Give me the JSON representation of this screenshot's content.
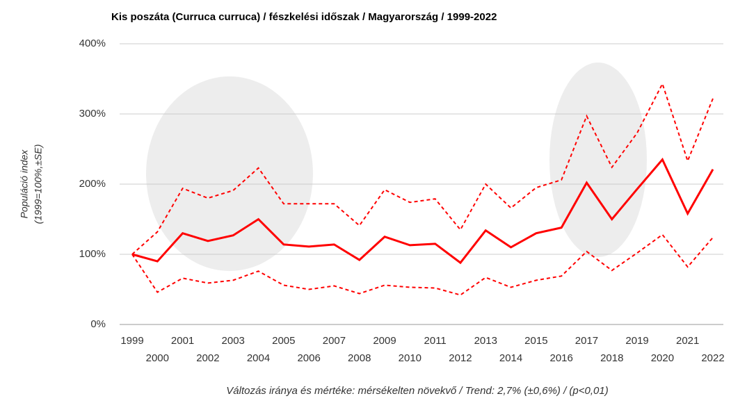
{
  "chart_data": {
    "type": "line",
    "title": "Kis poszáta (Curruca curruca) / fészkelési időszak / Magyarország / 1999-2022",
    "y_label": [
      "Populáció index",
      "(1999=100%,±SE)"
    ],
    "note": "Változás iránya és mértéke: mérsékelten növekvő / Trend: 2,7% (±0,6%) / (p<0,01)",
    "categories": [
      "1999",
      "2000",
      "2001",
      "2002",
      "2003",
      "2004",
      "2005",
      "2006",
      "2007",
      "2008",
      "2009",
      "2010",
      "2011",
      "2012",
      "2013",
      "2014",
      "2015",
      "2016",
      "2017",
      "2018",
      "2019",
      "2020",
      "2021",
      "2022"
    ],
    "series": [
      {
        "color": "#ff0000",
        "style": "solid",
        "values": [
          100,
          90,
          130,
          119,
          127,
          150,
          114,
          111,
          114,
          92,
          125,
          113,
          115,
          88,
          134,
          110,
          130,
          138,
          202,
          150,
          193,
          235,
          158,
          221
        ]
      },
      {
        "color": "#ff0000",
        "style": "dashed",
        "values": [
          100,
          132,
          194,
          180,
          191,
          223,
          172,
          172,
          172,
          141,
          192,
          174,
          179,
          135,
          200,
          166,
          195,
          206,
          297,
          224,
          273,
          343,
          233,
          322
        ]
      },
      {
        "color": "#ff0000",
        "style": "dashed",
        "values": [
          100,
          46,
          66,
          59,
          63,
          76,
          56,
          50,
          55,
          44,
          56,
          53,
          52,
          42,
          67,
          53,
          63,
          69,
          104,
          77,
          102,
          128,
          82,
          124
        ]
      }
    ],
    "ylim": [
      0,
      400
    ],
    "yticks": [
      {
        "value": 0,
        "label": "0%"
      },
      {
        "value": 100,
        "label": "100%"
      },
      {
        "value": 200,
        "label": "200%"
      },
      {
        "value": 300,
        "label": "300%"
      },
      {
        "value": 400,
        "label": "400%"
      }
    ],
    "grid": true
  }
}
